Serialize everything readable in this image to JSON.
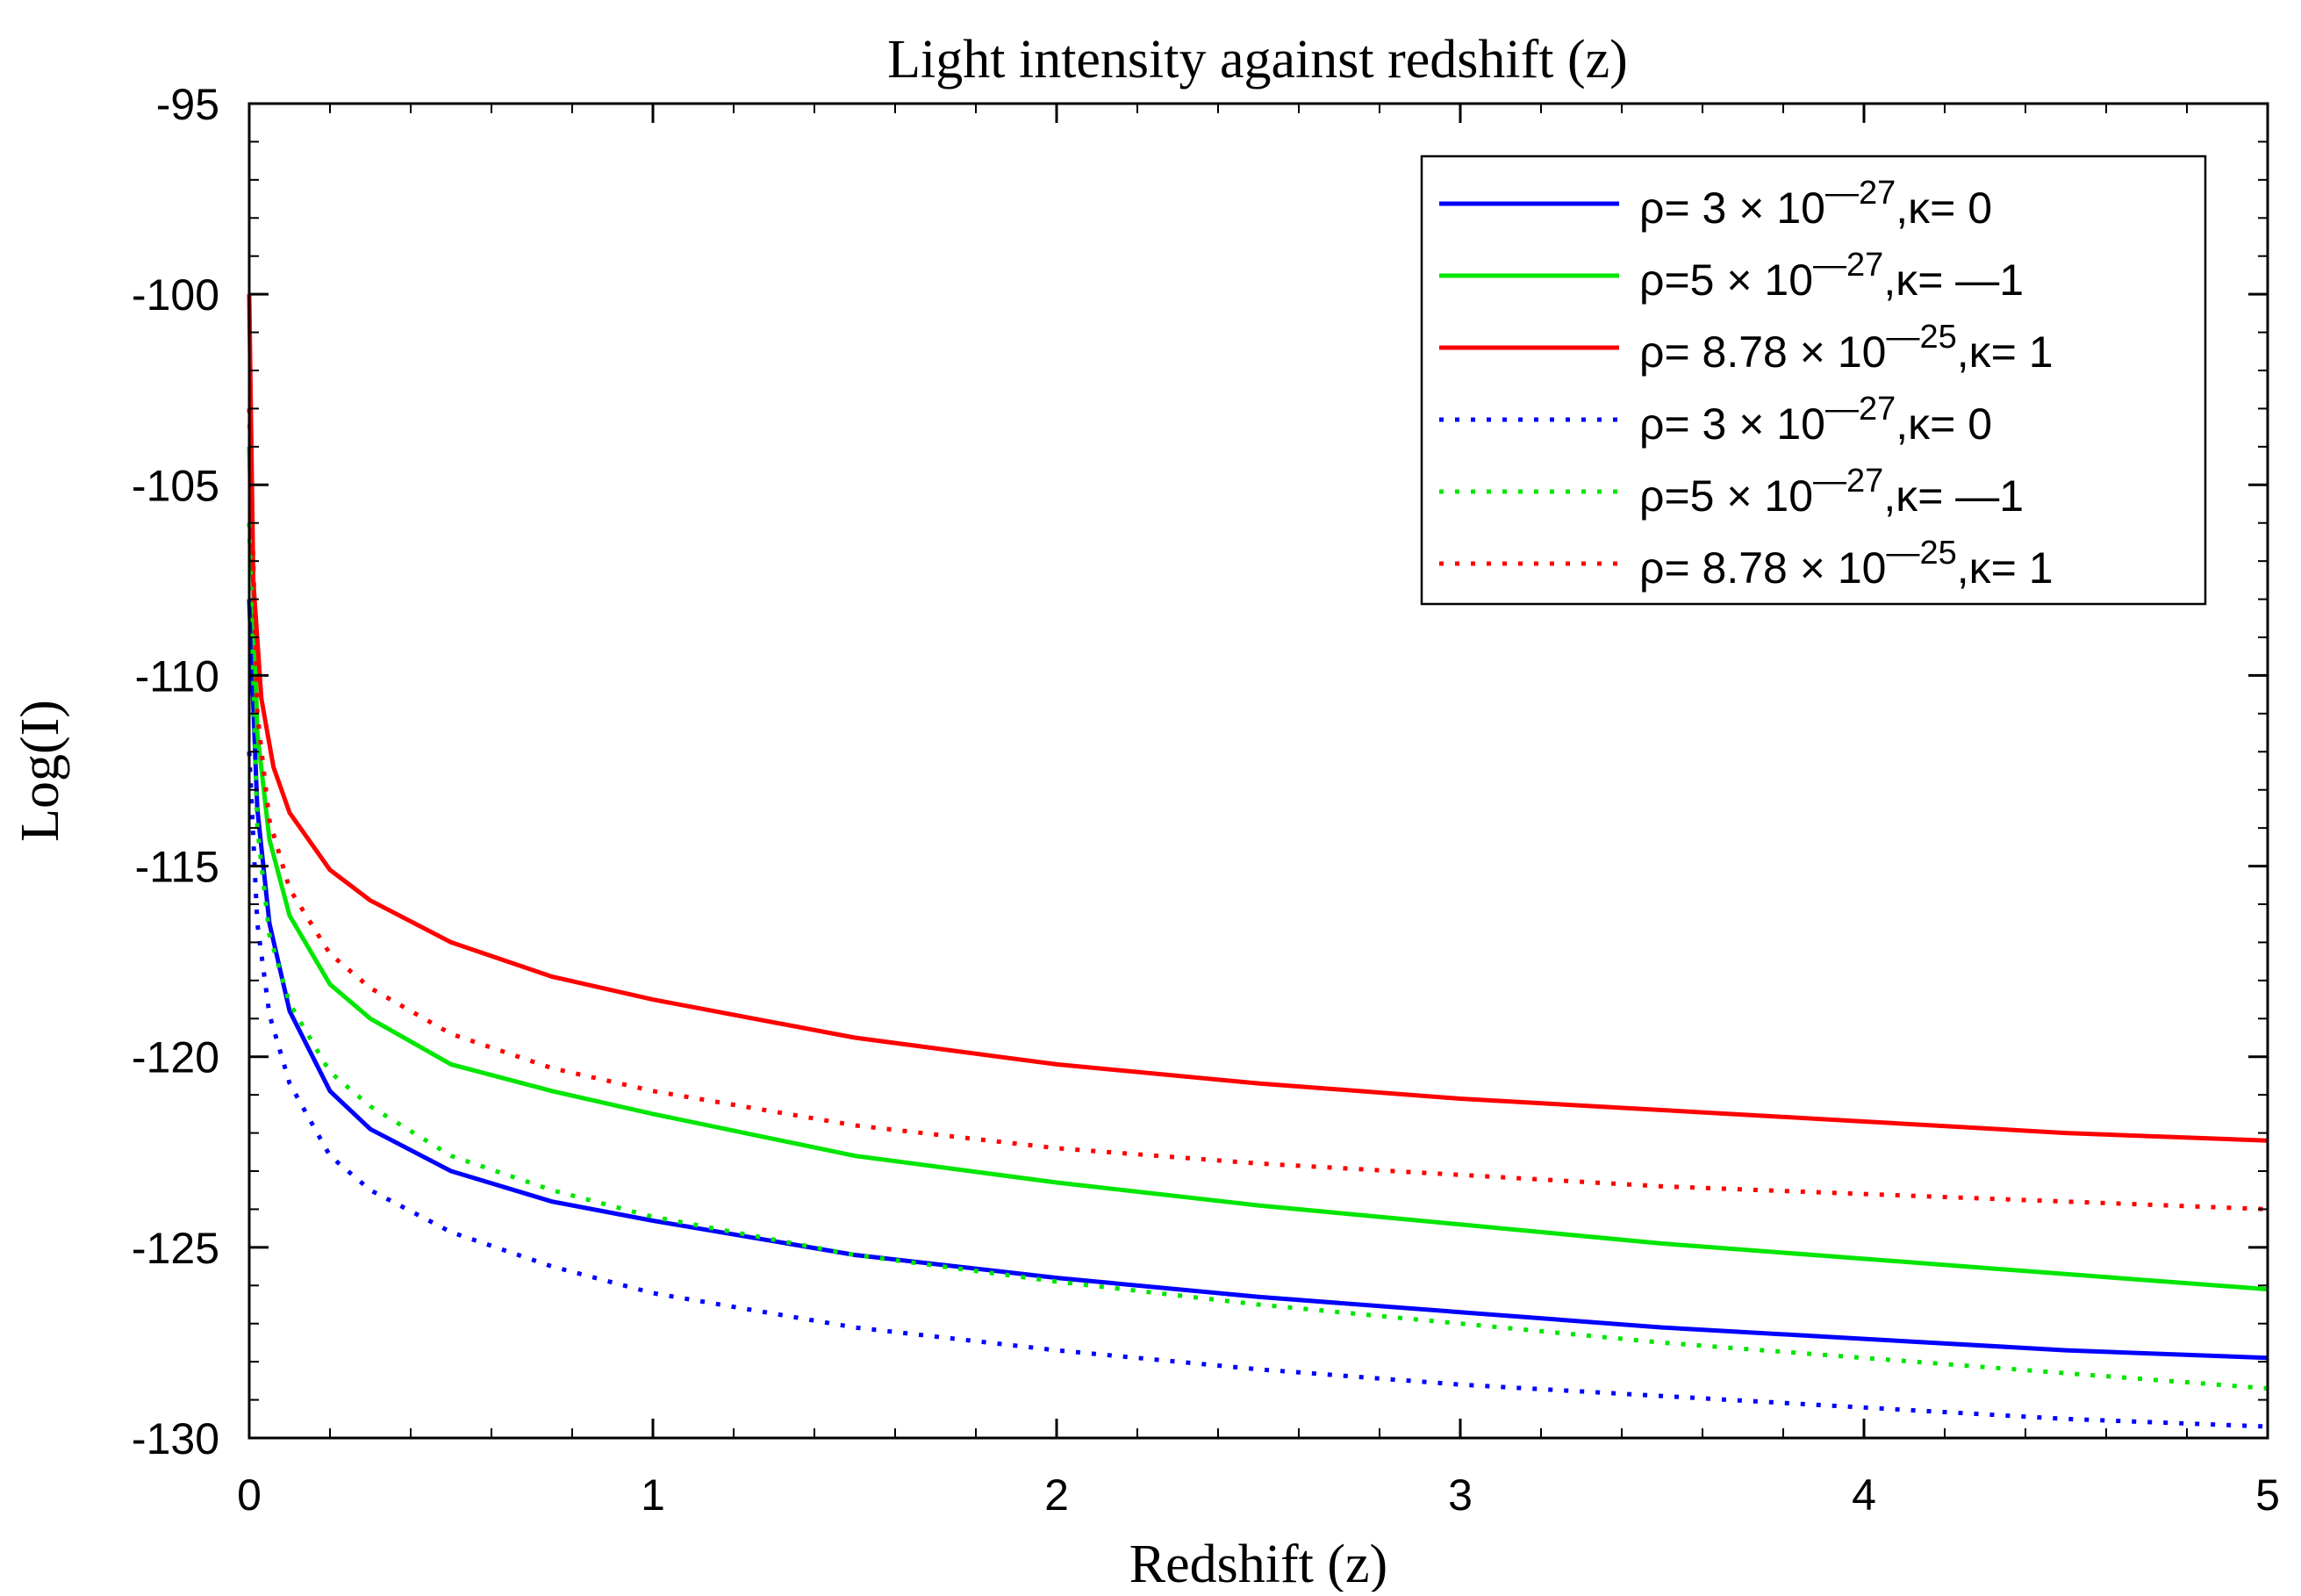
{
  "chart_data": {
    "type": "line",
    "title": "Light intensity against redshift (z)",
    "xlabel": "Redshift (z)",
    "ylabel": "Log(I)",
    "xlim": [
      0,
      5
    ],
    "ylim": [
      -130,
      -95
    ],
    "xticks": [
      0,
      1,
      2,
      3,
      4,
      5
    ],
    "yticks": [
      -95,
      -100,
      -105,
      -110,
      -115,
      -120,
      -125,
      -130
    ],
    "grid": false,
    "legend_position": "top-right",
    "series": [
      {
        "name": "ρ= 3 × 10—27,κ= 0",
        "rho_prefix": "ρ= 3 × 10",
        "rho_exp": "—27",
        "kappa": ",κ= 0",
        "color": "#0000ff",
        "style": "solid",
        "x": [
          0,
          0.02,
          0.05,
          0.1,
          0.2,
          0.3,
          0.5,
          0.75,
          1,
          1.5,
          2,
          2.5,
          3,
          3.5,
          4,
          4.5,
          5
        ],
        "y": [
          -108,
          -113.5,
          -116.5,
          -118.8,
          -120.9,
          -121.9,
          -123.0,
          -123.8,
          -124.3,
          -125.2,
          -125.8,
          -126.3,
          -126.7,
          -127.1,
          -127.4,
          -127.7,
          -127.9
        ]
      },
      {
        "name": "ρ=5 × 10—27,κ= —1",
        "rho_prefix": "ρ=5 × 10",
        "rho_exp": "—27",
        "kappa": ",κ= —1",
        "color": "#00e600",
        "style": "solid",
        "x": [
          0,
          0.02,
          0.05,
          0.1,
          0.2,
          0.3,
          0.5,
          0.75,
          1,
          1.5,
          2,
          2.5,
          3,
          3.5,
          4,
          4.5,
          5
        ],
        "y": [
          -104,
          -111.5,
          -114.3,
          -116.3,
          -118.1,
          -119.0,
          -120.2,
          -120.9,
          -121.5,
          -122.6,
          -123.3,
          -123.9,
          -124.4,
          -124.9,
          -125.3,
          -125.7,
          -126.1
        ]
      },
      {
        "name": "ρ= 8.78 × 10—25,κ= 1",
        "rho_prefix": "ρ= 8.78 × 10",
        "rho_exp": "—25",
        "kappa": ",κ= 1",
        "color": "#ff0000",
        "style": "solid",
        "x": [
          0,
          0.01,
          0.03,
          0.06,
          0.1,
          0.2,
          0.3,
          0.5,
          0.75,
          1,
          1.5,
          2,
          2.5,
          3,
          3.5,
          4,
          4.5,
          5
        ],
        "y": [
          -100,
          -107.5,
          -110.6,
          -112.4,
          -113.6,
          -115.1,
          -115.9,
          -117.0,
          -117.9,
          -118.5,
          -119.5,
          -120.2,
          -120.7,
          -121.1,
          -121.4,
          -121.7,
          -122.0,
          -122.2
        ]
      },
      {
        "name": "ρ= 3 × 10—27,κ= 0",
        "rho_prefix": "ρ= 3 × 10",
        "rho_exp": "—27",
        "kappa": ",κ= 0",
        "color": "#0000ff",
        "style": "dotted",
        "x": [
          0,
          0.02,
          0.05,
          0.1,
          0.2,
          0.3,
          0.5,
          0.75,
          1,
          1.5,
          2,
          2.5,
          3,
          3.5,
          4,
          4.5,
          5
        ],
        "y": [
          -112,
          -116.5,
          -118.9,
          -120.7,
          -122.6,
          -123.5,
          -124.6,
          -125.5,
          -126.2,
          -127.1,
          -127.7,
          -128.2,
          -128.6,
          -128.9,
          -129.2,
          -129.5,
          -129.7
        ]
      },
      {
        "name": "ρ=5 × 10—27,κ= —1",
        "rho_prefix": "ρ=5 × 10",
        "rho_exp": "—27",
        "kappa": ",κ= —1",
        "color": "#00e600",
        "style": "dotted",
        "x": [
          0,
          0.02,
          0.05,
          0.1,
          0.2,
          0.3,
          0.5,
          0.75,
          1,
          1.5,
          2,
          2.5,
          3,
          3.5,
          4,
          4.5,
          5
        ],
        "y": [
          -106,
          -114.0,
          -116.8,
          -118.6,
          -120.4,
          -121.3,
          -122.6,
          -123.5,
          -124.2,
          -125.2,
          -125.9,
          -126.5,
          -127.0,
          -127.5,
          -127.9,
          -128.3,
          -128.7
        ]
      },
      {
        "name": "ρ= 8.78 × 10—25,κ= 1",
        "rho_prefix": "ρ= 8.78 × 10",
        "rho_exp": "—25",
        "kappa": ",κ= 1",
        "color": "#ff0000",
        "style": "dotted",
        "x": [
          0,
          0.02,
          0.05,
          0.1,
          0.2,
          0.3,
          0.5,
          0.75,
          1,
          1.5,
          2,
          2.5,
          3,
          3.5,
          4,
          4.5,
          5
        ],
        "y": [
          -103,
          -111.0,
          -113.8,
          -115.6,
          -117.3,
          -118.2,
          -119.4,
          -120.3,
          -120.9,
          -121.8,
          -122.4,
          -122.8,
          -123.1,
          -123.4,
          -123.6,
          -123.8,
          -124.0
        ]
      }
    ]
  }
}
